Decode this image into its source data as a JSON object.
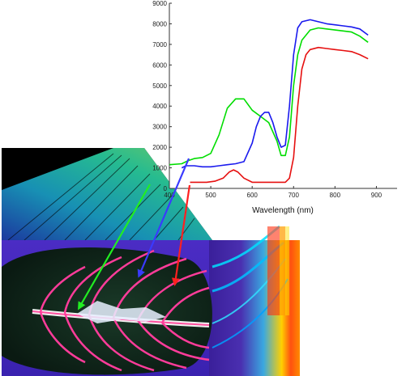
{
  "chart_data": {
    "type": "line",
    "title": "",
    "xlabel": "Wavelength (nm)",
    "ylabel": "",
    "xlim": [
      400,
      950
    ],
    "ylim": [
      0,
      9000
    ],
    "x_ticks": [
      "400",
      "500",
      "600",
      "700",
      "800",
      "900"
    ],
    "y_ticks": [
      "0",
      "1000",
      "2000",
      "3000",
      "4000",
      "5000",
      "6000",
      "7000",
      "8000",
      "9000"
    ],
    "grid": false,
    "legend": "none",
    "series": [
      {
        "color": "#00dd00",
        "x": [
          400,
          430,
          445,
          460,
          480,
          500,
          520,
          540,
          560,
          580,
          600,
          620,
          640,
          660,
          670,
          680,
          690,
          700,
          710,
          720,
          740,
          760,
          780,
          800,
          820,
          840,
          860,
          880
        ],
        "y": [
          1150,
          1200,
          1350,
          1450,
          1500,
          1700,
          2600,
          3900,
          4350,
          4350,
          3800,
          3500,
          3200,
          2300,
          1600,
          1600,
          2500,
          5000,
          6500,
          7200,
          7700,
          7800,
          7750,
          7700,
          7650,
          7600,
          7400,
          7100
        ]
      },
      {
        "color": "#1a1aee",
        "x": [
          430,
          440,
          450,
          460,
          480,
          500,
          520,
          540,
          560,
          580,
          600,
          610,
          620,
          630,
          640,
          650,
          660,
          670,
          680,
          690,
          700,
          710,
          720,
          740,
          760,
          780,
          800,
          820,
          840,
          860,
          880
        ],
        "y": [
          1000,
          1100,
          1100,
          1100,
          1050,
          1050,
          1100,
          1150,
          1200,
          1300,
          2200,
          3000,
          3500,
          3700,
          3700,
          3200,
          2500,
          2000,
          2100,
          4000,
          6500,
          7800,
          8100,
          8200,
          8100,
          8000,
          7950,
          7900,
          7850,
          7750,
          7450
        ]
      },
      {
        "color": "#e61010",
        "x": [
          450,
          470,
          490,
          510,
          530,
          545,
          555,
          565,
          580,
          600,
          630,
          660,
          680,
          690,
          700,
          710,
          720,
          730,
          740,
          760,
          780,
          800,
          820,
          840,
          860,
          880
        ],
        "y": [
          300,
          300,
          300,
          350,
          500,
          800,
          900,
          800,
          500,
          300,
          300,
          300,
          300,
          500,
          1500,
          4000,
          5800,
          6500,
          6750,
          6850,
          6800,
          6750,
          6700,
          6650,
          6500,
          6300
        ]
      }
    ]
  }
}
